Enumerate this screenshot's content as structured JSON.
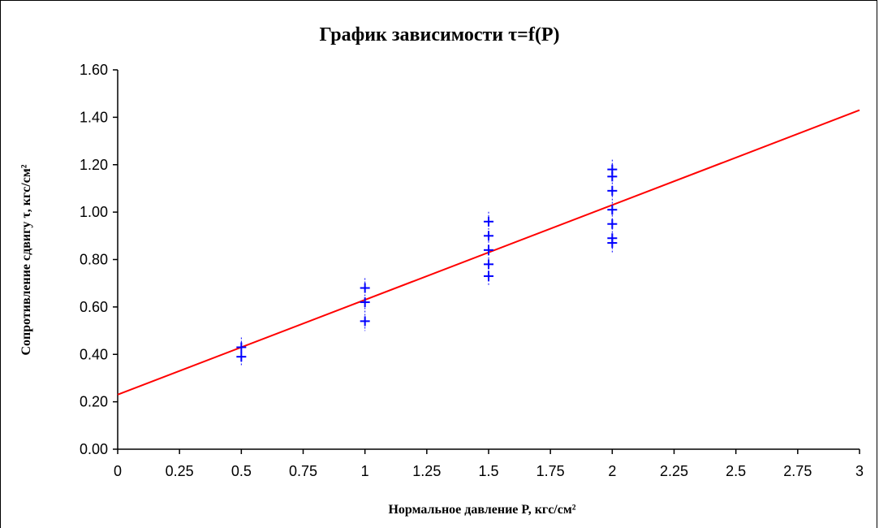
{
  "chart_data": {
    "type": "scatter",
    "title": "График зависимости τ=f(P)",
    "xlabel": "Нормальное давление P, кгс/см²",
    "ylabel": "Сопротивление сдвигу τ, кгс/см²",
    "xlim": [
      0,
      3
    ],
    "ylim": [
      0,
      1.6
    ],
    "x_ticks": [
      "0",
      "0.25",
      "0.5",
      "0.75",
      "1",
      "1.25",
      "1.5",
      "1.75",
      "2",
      "2.25",
      "2.5",
      "2.75",
      "3"
    ],
    "y_ticks": [
      "0.00",
      "0.20",
      "0.40",
      "0.60",
      "0.80",
      "1.00",
      "1.20",
      "1.40",
      "1.60"
    ],
    "grid": false,
    "series": [
      {
        "kind": "points",
        "color": "#0000ff",
        "marker": "plus",
        "points": [
          {
            "x": 0.5,
            "y": 0.39
          },
          {
            "x": 0.5,
            "y": 0.43
          },
          {
            "x": 1.0,
            "y": 0.54
          },
          {
            "x": 1.0,
            "y": 0.62
          },
          {
            "x": 1.0,
            "y": 0.68
          },
          {
            "x": 1.5,
            "y": 0.73
          },
          {
            "x": 1.5,
            "y": 0.78
          },
          {
            "x": 1.5,
            "y": 0.84
          },
          {
            "x": 1.5,
            "y": 0.9
          },
          {
            "x": 1.5,
            "y": 0.96
          },
          {
            "x": 2.0,
            "y": 0.87
          },
          {
            "x": 2.0,
            "y": 0.89
          },
          {
            "x": 2.0,
            "y": 0.95
          },
          {
            "x": 2.0,
            "y": 1.01
          },
          {
            "x": 2.0,
            "y": 1.09
          },
          {
            "x": 2.0,
            "y": 1.15
          },
          {
            "x": 2.0,
            "y": 1.18
          }
        ]
      },
      {
        "kind": "line",
        "color": "#ff0000",
        "points": [
          {
            "x": 0,
            "y": 0.23
          },
          {
            "x": 3,
            "y": 1.43
          }
        ]
      }
    ]
  }
}
